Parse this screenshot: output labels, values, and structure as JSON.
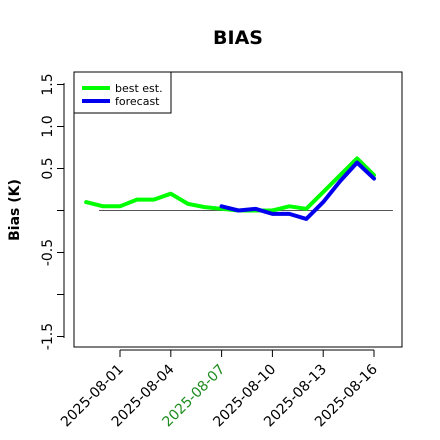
{
  "chart_data": {
    "type": "line",
    "title": "BIAS",
    "ylabel": "Bias (K)",
    "xlabel": "",
    "ylim": [
      -1.6,
      1.6
    ],
    "y_ticks": [
      {
        "value": -1.5,
        "label": "-1.5"
      },
      {
        "value": -1.0,
        "label": ""
      },
      {
        "value": -0.5,
        "label": "-0.5"
      },
      {
        "value": 0.0,
        "label": ""
      },
      {
        "value": 0.5,
        "label": "0.5"
      },
      {
        "value": 1.0,
        "label": "1.0"
      },
      {
        "value": 1.5,
        "label": "1.5"
      }
    ],
    "x_ticks": [
      {
        "label": "2025-08-01",
        "color": "#000000"
      },
      {
        "label": "2025-08-04",
        "color": "#000000"
      },
      {
        "label": "2025-08-07",
        "color": "#1e8c1e"
      },
      {
        "label": "2025-08-10",
        "color": "#000000"
      },
      {
        "label": "2025-08-13",
        "color": "#000000"
      },
      {
        "label": "2025-08-16",
        "color": "#000000"
      }
    ],
    "x_dates": [
      "2025-07-31",
      "2025-08-01",
      "2025-08-02",
      "2025-08-03",
      "2025-08-04",
      "2025-08-05",
      "2025-08-06",
      "2025-08-07",
      "2025-08-08",
      "2025-08-09",
      "2025-08-10",
      "2025-08-11",
      "2025-08-12",
      "2025-08-13",
      "2025-08-14",
      "2025-08-15",
      "2025-08-16",
      "2025-08-17"
    ],
    "zero_line": true,
    "legend_position": "top-left",
    "series": [
      {
        "name": "best est.",
        "color": "#00ff00",
        "x": [
          "2025-07-30",
          "2025-07-31",
          "2025-08-01",
          "2025-08-02",
          "2025-08-03",
          "2025-08-04",
          "2025-08-05",
          "2025-08-06",
          "2025-08-07",
          "2025-08-08",
          "2025-08-09",
          "2025-08-10",
          "2025-08-11",
          "2025-08-12",
          "2025-08-13",
          "2025-08-14",
          "2025-08-15",
          "2025-08-16"
        ],
        "values": [
          0.1,
          0.05,
          0.05,
          0.13,
          0.13,
          0.2,
          0.08,
          0.04,
          0.02,
          0.0,
          0.0,
          0.0,
          0.05,
          0.02,
          0.22,
          0.42,
          0.62,
          0.42
        ]
      },
      {
        "name": "forecast",
        "color": "#0000ee",
        "x": [
          "2025-08-07",
          "2025-08-08",
          "2025-08-09",
          "2025-08-10",
          "2025-08-11",
          "2025-08-12",
          "2025-08-13",
          "2025-08-14",
          "2025-08-15",
          "2025-08-16"
        ],
        "values": [
          0.05,
          0.0,
          0.02,
          -0.04,
          -0.04,
          -0.1,
          0.1,
          0.35,
          0.57,
          0.38
        ]
      }
    ]
  }
}
